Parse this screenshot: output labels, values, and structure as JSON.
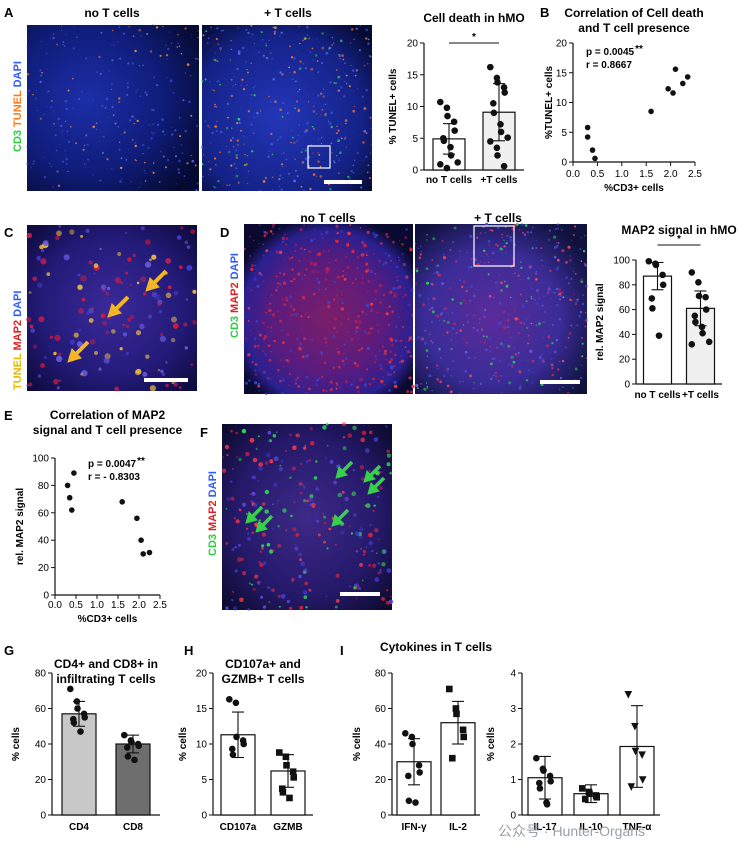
{
  "panel_labels": {
    "A": "A",
    "B": "B",
    "C": "C",
    "D": "D",
    "E": "E",
    "F": "F",
    "G": "G",
    "H": "H",
    "I": "I"
  },
  "micrographs": {
    "A_left_label": "no T cells",
    "A_right_label": "+ T cells",
    "A_stain": [
      {
        "text": "CD3 ",
        "color": "#2ecc40"
      },
      {
        "text": "TUNEL ",
        "color": "#ff7a1a"
      },
      {
        "text": "DAPI",
        "color": "#2f5bff"
      }
    ],
    "C_stain": [
      {
        "text": "TUNEL ",
        "color": "#e6b800"
      },
      {
        "text": "MAP2 ",
        "color": "#e02020"
      },
      {
        "text": "DAPI",
        "color": "#2f5bff"
      }
    ],
    "D_left_label": "no T cells",
    "D_right_label": "+ T cells",
    "D_stain": [
      {
        "text": "CD3 ",
        "color": "#2ecc40"
      },
      {
        "text": "MAP2 ",
        "color": "#e02020"
      },
      {
        "text": "DAPI",
        "color": "#2f5bff"
      }
    ],
    "F_stain": [
      {
        "text": "CD3 ",
        "color": "#2ecc40"
      },
      {
        "text": "MAP2 ",
        "color": "#e02020"
      },
      {
        "text": "DAPI",
        "color": "#2f5bff"
      }
    ]
  },
  "watermark": "公众号 · Hunter-Organs",
  "chart_data": [
    {
      "id": "A_bar",
      "type": "bar",
      "title": "Cell death in hMO",
      "categories": [
        "no T cells",
        "+T cells"
      ],
      "ylabel": "% TUNEL+ cells",
      "ylim": [
        0,
        20
      ],
      "yticks": [
        0,
        5,
        10,
        15,
        20
      ],
      "values": [
        4.9,
        9.1
      ],
      "err": [
        2.4,
        4.5
      ],
      "fills": [
        "#ffffff",
        "#f0f0f0"
      ],
      "points": [
        [
          10.7,
          9.8,
          8.5,
          7.6,
          6.2,
          5.0,
          4.6,
          3.6,
          2.3,
          1.2,
          0.9,
          0.3
        ],
        [
          16.2,
          14.5,
          13.8,
          13.0,
          12.2,
          10.5,
          9.0,
          7.2,
          6.0,
          5.1,
          4.5,
          3.5,
          2.3,
          0.6
        ]
      ],
      "marker": [
        "circle",
        "circle"
      ],
      "sig": "*"
    },
    {
      "id": "B_scatter",
      "type": "scatter",
      "title": [
        "Correlation of Cell death",
        "and T cell presence"
      ],
      "xlabel": "%CD3+ cells",
      "ylabel": "%TUNEL+ cells",
      "xlim": [
        0,
        2.5
      ],
      "ylim": [
        0,
        20
      ],
      "xticks": [
        0.0,
        0.5,
        1.0,
        1.5,
        2.0,
        2.5
      ],
      "yticks": [
        0,
        5,
        10,
        15,
        20
      ],
      "x": [
        0.3,
        0.3,
        0.4,
        0.45,
        1.6,
        1.95,
        2.05,
        2.1,
        2.25,
        2.35
      ],
      "y": [
        5.8,
        4.2,
        2.0,
        0.6,
        8.5,
        12.3,
        11.6,
        15.6,
        13.2,
        14.3
      ],
      "stats": [
        "p = 0.0045",
        "r = 0.8667"
      ],
      "stars": "**"
    },
    {
      "id": "D_bar",
      "type": "bar",
      "title": "MAP2 signal in hMO",
      "categories": [
        "no T cells",
        "+T cells"
      ],
      "ylabel": "rel. MAP2 signal",
      "ylim": [
        0,
        100
      ],
      "yticks": [
        0,
        20,
        40,
        60,
        80,
        100
      ],
      "values": [
        87,
        61
      ],
      "err": [
        11,
        14
      ],
      "fills": [
        "#ffffff",
        "#f0f0f0"
      ],
      "points": [
        [
          99,
          97,
          96,
          88,
          80,
          69,
          61,
          39
        ],
        [
          90,
          82,
          71,
          70,
          60,
          55,
          50,
          46,
          41,
          34,
          32
        ]
      ],
      "marker": [
        "circle",
        "circle"
      ],
      "sig": "*"
    },
    {
      "id": "E_scatter",
      "type": "scatter",
      "title": [
        "Correlation of MAP2",
        "signal and T cell presence"
      ],
      "xlabel": "%CD3+ cells",
      "ylabel": "rel. MAP2 signal",
      "xlim": [
        0,
        2.5
      ],
      "ylim": [
        0,
        100
      ],
      "xticks": [
        0.0,
        0.5,
        1.0,
        1.5,
        2.0,
        2.5
      ],
      "yticks": [
        0,
        20,
        40,
        60,
        80,
        100
      ],
      "x": [
        0.3,
        0.35,
        0.4,
        0.45,
        1.6,
        1.95,
        2.05,
        2.1,
        2.25
      ],
      "y": [
        80,
        71,
        62,
        89,
        68,
        56,
        40,
        30,
        31
      ],
      "stats": [
        "p = 0.0047",
        "r = - 0.8303"
      ],
      "stars": "**"
    },
    {
      "id": "G_bar",
      "type": "bar",
      "title": [
        "CD4+ and CD8+ in",
        "infiltrating T cells"
      ],
      "categories": [
        "CD4",
        "CD8"
      ],
      "ylabel": "% cells",
      "ylim": [
        0,
        80
      ],
      "yticks": [
        0,
        20,
        40,
        60,
        80
      ],
      "values": [
        57,
        40
      ],
      "err": [
        7,
        5
      ],
      "fills": [
        "#c8c8c8",
        "#6e6e6e"
      ],
      "points": [
        [
          71,
          64,
          60,
          57,
          55,
          54,
          52,
          47
        ],
        [
          45,
          42,
          41,
          40,
          39,
          38,
          33,
          31
        ]
      ],
      "marker": [
        "circle",
        "circle"
      ],
      "sig": ""
    },
    {
      "id": "H_bar",
      "type": "bar",
      "title": [
        "CD107a+ and",
        "GZMB+ T cells"
      ],
      "categories": [
        "CD107a",
        "GZMB"
      ],
      "ylabel": "% cells",
      "ylim": [
        0,
        20
      ],
      "yticks": [
        0,
        5,
        10,
        15,
        20
      ],
      "values": [
        11.3,
        6.2
      ],
      "err": [
        3.2,
        2.3
      ],
      "fills": [
        "#ffffff",
        "#ffffff"
      ],
      "points": [
        [
          16.3,
          15.8,
          11.0,
          10.5,
          10.0,
          9.3,
          8.5
        ],
        [
          8.8,
          8.2,
          7.0,
          6.1,
          5.3,
          3.7,
          3.2,
          2.4
        ]
      ],
      "marker": [
        "circle",
        "square"
      ],
      "sig": ""
    },
    {
      "id": "I1_bar",
      "type": "bar",
      "title": "Cytokines in T cells",
      "categories": [
        "IFN-γ",
        "IL-2"
      ],
      "ylabel": "% cells",
      "ylim": [
        0,
        80
      ],
      "yticks": [
        0,
        20,
        40,
        60,
        80
      ],
      "values": [
        30,
        52
      ],
      "err": [
        13,
        12
      ],
      "fills": [
        "#ffffff",
        "#ffffff"
      ],
      "points": [
        [
          46,
          44,
          40,
          28,
          24,
          22,
          8,
          7
        ],
        [
          71,
          60,
          57,
          48,
          44,
          32
        ]
      ],
      "marker": [
        "circle",
        "square"
      ],
      "sig": ""
    },
    {
      "id": "I2_bar",
      "type": "bar",
      "title": "",
      "categories": [
        "IL-17",
        "IL-10",
        "TNF-α"
      ],
      "ylabel": "% cells",
      "ylim": [
        0,
        4
      ],
      "yticks": [
        0,
        1,
        2,
        3,
        4
      ],
      "values": [
        1.05,
        0.6,
        1.93
      ],
      "err": [
        0.6,
        0.25,
        1.15
      ],
      "fills": [
        "#ffffff",
        "#ffffff",
        "#ffffff"
      ],
      "points": [
        [
          1.6,
          1.3,
          1.25,
          1.1,
          0.95,
          0.9,
          0.75,
          0.35,
          0.3
        ],
        [
          0.75,
          0.65,
          0.6,
          0.55,
          0.5,
          0.45
        ],
        [
          3.4,
          2.5,
          1.8,
          1.7,
          1.0,
          0.8
        ]
      ],
      "marker": [
        "circle",
        "square",
        "triangle"
      ],
      "sig": ""
    }
  ]
}
